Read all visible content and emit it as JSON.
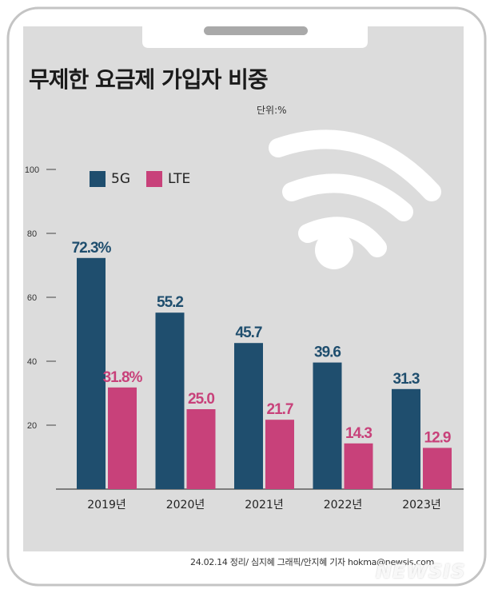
{
  "colors": {
    "5G": "#1f4e6e",
    "LTE": "#c8417a",
    "background": "#dcdcdc"
  },
  "unit_label": "단위:%",
  "credit": "24.02.14 정리/ 심지혜 그래픽/안지혜 기자 hokma@newsis.com",
  "watermark": "NEWSIS",
  "wifi_icon": "wifi-icon",
  "chart_data": {
    "type": "bar",
    "title": "무제한 요금제 가입자 비중",
    "xlabel": "",
    "ylabel": "",
    "ylim": [
      0,
      100
    ],
    "yticks": [
      20,
      40,
      60,
      80,
      100
    ],
    "ytick_labels": [
      "20",
      "40",
      "60",
      "80",
      "100"
    ],
    "categories": [
      "2019년",
      "2020년",
      "2021년",
      "2022년",
      "2023년"
    ],
    "series": [
      {
        "name": "5G",
        "values": [
          72.3,
          55.2,
          45.7,
          39.6,
          31.3
        ],
        "labels": [
          "72.3%",
          "55.2",
          "45.7",
          "39.6",
          "31.3"
        ]
      },
      {
        "name": "LTE",
        "values": [
          31.8,
          25.0,
          21.7,
          14.3,
          12.9
        ],
        "labels": [
          "31.8%",
          "25.0",
          "21.7",
          "14.3",
          "12.9"
        ]
      }
    ],
    "legend": [
      "5G",
      "LTE"
    ]
  }
}
